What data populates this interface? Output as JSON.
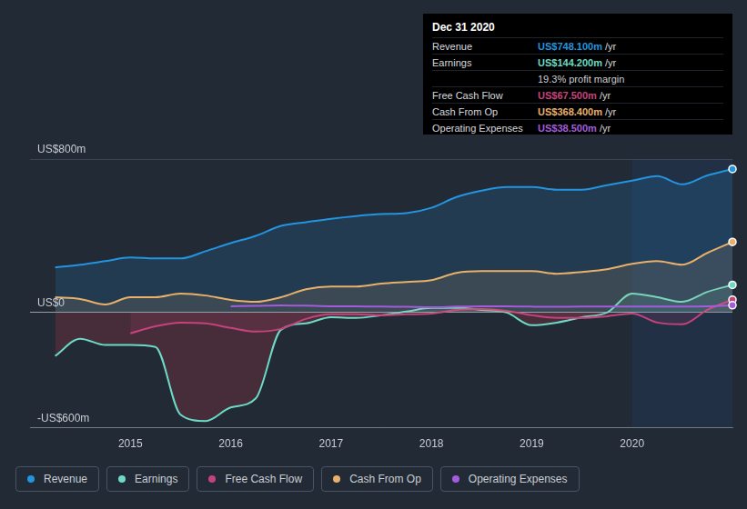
{
  "chart_data": {
    "type": "line",
    "x": [
      2014.25,
      2014.5,
      2014.75,
      2015,
      2015.25,
      2015.5,
      2015.75,
      2016,
      2016.25,
      2016.5,
      2016.75,
      2017,
      2017.25,
      2017.5,
      2017.75,
      2018,
      2018.25,
      2018.5,
      2018.75,
      2019,
      2019.25,
      2019.5,
      2019.75,
      2020,
      2020.25,
      2020.5,
      2020.75,
      2021
    ],
    "series": [
      {
        "name": "Revenue",
        "color": "#2394df",
        "values": [
          235,
          249,
          268,
          287,
          282,
          282,
          320,
          362,
          400,
          452,
          471,
          489,
          503,
          513,
          518,
          546,
          602,
          635,
          654,
          654,
          640,
          640,
          664,
          687,
          711,
          668,
          715,
          748.1
        ]
      },
      {
        "name": "Earnings",
        "color": "#6cdac4",
        "values": [
          -226,
          -136,
          -169,
          -169,
          -179,
          -532,
          -565,
          -494,
          -447,
          -90,
          -56,
          -24,
          -28,
          -14,
          5,
          24,
          24,
          14,
          0,
          -66,
          -52,
          -24,
          0,
          99,
          80,
          56,
          108,
          144.2
        ]
      },
      {
        "name": "Free Cash Flow",
        "color": "#c5437d",
        "values": [
          null,
          null,
          null,
          -108,
          -71,
          -52,
          -56,
          -80,
          -99,
          -85,
          -33,
          -9,
          -9,
          -14,
          -9,
          -5,
          14,
          19,
          9,
          -14,
          -28,
          -28,
          -19,
          -5,
          -52,
          -61,
          14,
          67.5
        ]
      },
      {
        "name": "Cash From Op",
        "color": "#e8b06a",
        "values": [
          80,
          71,
          42,
          80,
          80,
          99,
          89,
          66,
          56,
          80,
          122,
          136,
          136,
          151,
          160,
          169,
          207,
          216,
          216,
          216,
          202,
          212,
          226,
          254,
          268,
          249,
          311,
          368.4
        ]
      },
      {
        "name": "Operating Expenses",
        "color": "#a25cdd",
        "values": [
          null,
          null,
          null,
          null,
          null,
          null,
          null,
          33,
          35,
          38,
          36,
          33,
          33,
          31,
          30,
          28,
          31,
          33,
          33,
          31,
          30,
          31,
          31,
          31,
          31,
          31,
          33,
          38.5
        ]
      }
    ],
    "xlim": [
      2014,
      2021
    ],
    "xticks": [
      2015,
      2016,
      2017,
      2018,
      2019,
      2020
    ],
    "ylim": [
      -600,
      800
    ],
    "yticks": [
      {
        "value": 800,
        "label": "US$800m"
      },
      {
        "value": 0,
        "label": "US$0"
      },
      {
        "value": -600,
        "label": "-US$600m"
      }
    ],
    "grid": true,
    "legend": "bottom",
    "annotation": {
      "title": "Dec 31 2020",
      "rows": [
        {
          "name": "Revenue",
          "value": 748.1,
          "label": "US$748.100m",
          "unit": "/yr"
        },
        {
          "name": "Earnings",
          "value": 144.2,
          "label": "US$144.200m",
          "unit": "/yr"
        },
        {
          "label": "19.3% profit margin"
        },
        {
          "name": "Free Cash Flow",
          "value": 67.5,
          "label": "US$67.500m",
          "unit": "/yr"
        },
        {
          "name": "Cash From Op",
          "value": 368.4,
          "label": "US$368.400m",
          "unit": "/yr"
        },
        {
          "name": "Operating Expenses",
          "value": 38.5,
          "label": "US$38.500m",
          "unit": "/yr"
        }
      ]
    }
  }
}
